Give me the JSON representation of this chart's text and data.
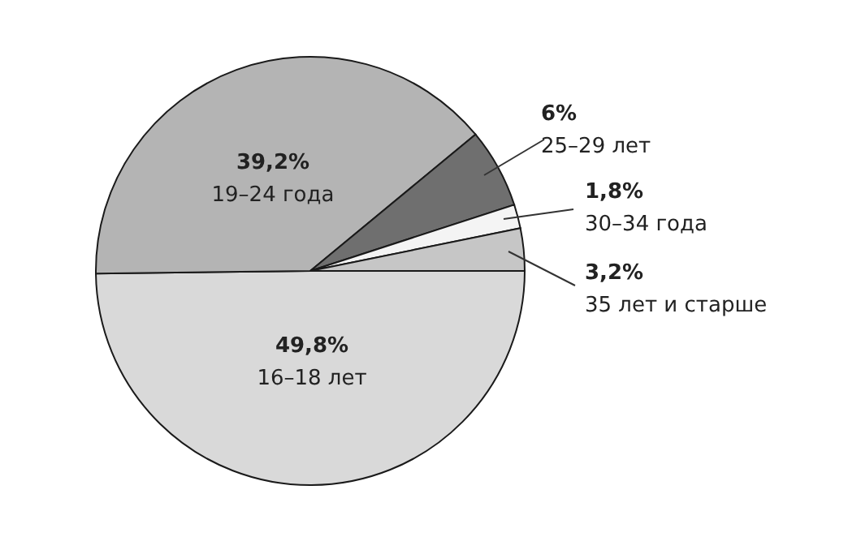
{
  "chart_data": {
    "type": "pie",
    "categories": [
      "16–18 лет",
      "19–24 года",
      "25–29 лет",
      "30–34 года",
      "35 лет и старше"
    ],
    "values": [
      49.8,
      39.2,
      6,
      1.8,
      3.2
    ],
    "value_labels": [
      "49,8%",
      "39,2%",
      "6%",
      "1,8%",
      "3,2%"
    ],
    "colors": [
      "#d9d9d9",
      "#b4b4b4",
      "#6f6f6f",
      "#f4f4f4",
      "#c6c6c6"
    ]
  }
}
